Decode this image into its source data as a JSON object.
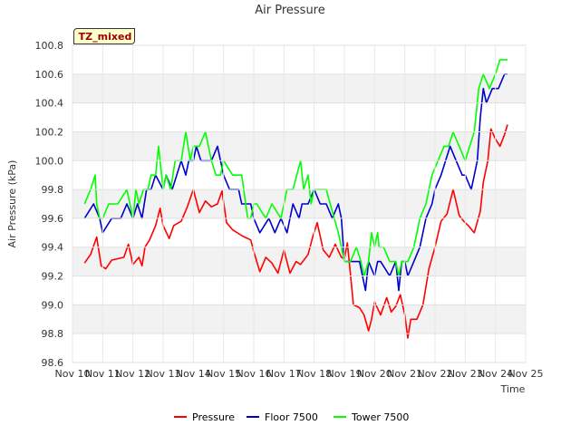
{
  "tag": "TZ_mixed",
  "colors": {
    "Pressure": "#ff0000",
    "Floor 7500": "#0000cc",
    "Tower 7500": "#00ff00"
  },
  "chart_data": {
    "type": "line",
    "title": "Air Pressure",
    "xlabel": "Time",
    "ylabel": "Air Pressure (kPa)",
    "xlim": [
      10,
      25
    ],
    "ylim": [
      98.6,
      100.8
    ],
    "x_ticks": [
      10,
      11,
      12,
      13,
      14,
      15,
      16,
      17,
      18,
      19,
      20,
      21,
      22,
      23,
      24,
      25
    ],
    "x_tick_labels": [
      "Nov 10",
      "Nov 11",
      "Nov 12",
      "Nov 13",
      "Nov 14",
      "Nov 15",
      "Nov 16",
      "Nov 17",
      "Nov 18",
      "Nov 19",
      "Nov 20",
      "Nov 21",
      "Nov 22",
      "Nov 23",
      "Nov 24",
      "Nov 25"
    ],
    "y_ticks": [
      98.6,
      98.8,
      99.0,
      99.2,
      99.4,
      99.6,
      99.8,
      100.0,
      100.2,
      100.4,
      100.6,
      100.8
    ],
    "y_tick_labels": [
      "98.6",
      "98.8",
      "99.0",
      "99.2",
      "99.4",
      "99.6",
      "99.8",
      "100.0",
      "100.2",
      "100.4",
      "100.6",
      "100.8"
    ],
    "legend": "bottom",
    "series": [
      {
        "name": "Pressure",
        "x": [
          10.4,
          10.6,
          10.8,
          10.95,
          11.1,
          11.3,
          11.5,
          11.7,
          11.85,
          12.0,
          12.2,
          12.3,
          12.4,
          12.55,
          12.75,
          12.9,
          13.0,
          13.2,
          13.35,
          13.6,
          13.8,
          14.0,
          14.2,
          14.4,
          14.6,
          14.8,
          14.95,
          15.1,
          15.3,
          15.6,
          15.9,
          16.0,
          16.2,
          16.4,
          16.6,
          16.8,
          17.0,
          17.2,
          17.4,
          17.55,
          17.8,
          17.95,
          18.1,
          18.3,
          18.5,
          18.7,
          18.9,
          19.0,
          19.1,
          19.3,
          19.5,
          19.65,
          19.8,
          19.9,
          20.0,
          20.2,
          20.4,
          20.55,
          20.7,
          20.85,
          21.0,
          21.1,
          21.2,
          21.4,
          21.6,
          21.8,
          22.0,
          22.2,
          22.4,
          22.6,
          22.8,
          22.95,
          23.1,
          23.3,
          23.5,
          23.6,
          23.75,
          23.85,
          24.0,
          24.15,
          24.3,
          24.4
        ],
        "values": [
          99.29,
          99.35,
          99.47,
          99.27,
          99.25,
          99.31,
          99.32,
          99.33,
          99.42,
          99.28,
          99.33,
          99.27,
          99.4,
          99.45,
          99.55,
          99.67,
          99.55,
          99.46,
          99.55,
          99.58,
          99.68,
          99.8,
          99.64,
          99.72,
          99.68,
          99.7,
          99.79,
          99.57,
          99.52,
          99.48,
          99.45,
          99.37,
          99.23,
          99.33,
          99.29,
          99.22,
          99.38,
          99.22,
          99.3,
          99.28,
          99.35,
          99.47,
          99.57,
          99.38,
          99.33,
          99.42,
          99.33,
          99.32,
          99.43,
          99.0,
          98.98,
          98.93,
          98.82,
          98.9,
          99.02,
          98.93,
          99.05,
          98.95,
          98.99,
          99.07,
          98.93,
          98.77,
          98.9,
          98.9,
          99.0,
          99.25,
          99.4,
          99.58,
          99.63,
          99.8,
          99.62,
          99.58,
          99.55,
          99.5,
          99.65,
          99.85,
          100.0,
          100.22,
          100.15,
          100.1,
          100.18,
          100.25
        ]
      },
      {
        "name": "Floor 7500",
        "x": [
          10.4,
          10.7,
          10.9,
          11.0,
          11.3,
          11.6,
          11.8,
          12.0,
          12.15,
          12.3,
          12.45,
          12.6,
          12.75,
          13.0,
          13.1,
          13.3,
          13.45,
          13.6,
          13.75,
          13.85,
          14.0,
          14.1,
          14.25,
          14.6,
          14.8,
          14.9,
          15.0,
          15.2,
          15.5,
          15.6,
          15.9,
          16.0,
          16.2,
          16.5,
          16.7,
          16.9,
          17.1,
          17.3,
          17.5,
          17.6,
          17.8,
          18.0,
          18.2,
          18.4,
          18.6,
          18.8,
          18.9,
          19.0,
          19.2,
          19.5,
          19.6,
          19.7,
          19.8,
          20.0,
          20.1,
          20.2,
          20.5,
          20.7,
          20.8,
          20.9,
          21.0,
          21.1,
          21.3,
          21.5,
          21.7,
          21.9,
          22.0,
          22.2,
          22.35,
          22.5,
          22.7,
          22.9,
          23.0,
          23.2,
          23.4,
          23.5,
          23.6,
          23.7,
          23.9,
          24.1,
          24.3,
          24.4
        ],
        "values": [
          99.6,
          99.7,
          99.6,
          99.5,
          99.6,
          99.6,
          99.7,
          99.6,
          99.7,
          99.6,
          99.8,
          99.8,
          99.9,
          99.8,
          99.9,
          99.8,
          99.9,
          100.0,
          99.9,
          100.0,
          100.0,
          100.1,
          100.0,
          100.0,
          100.1,
          100.0,
          99.9,
          99.8,
          99.8,
          99.7,
          99.7,
          99.6,
          99.5,
          99.6,
          99.5,
          99.6,
          99.5,
          99.7,
          99.6,
          99.7,
          99.7,
          99.8,
          99.7,
          99.7,
          99.6,
          99.7,
          99.6,
          99.3,
          99.3,
          99.3,
          99.2,
          99.1,
          99.3,
          99.2,
          99.3,
          99.3,
          99.2,
          99.3,
          99.1,
          99.3,
          99.3,
          99.2,
          99.3,
          99.4,
          99.6,
          99.7,
          99.8,
          99.9,
          100.0,
          100.1,
          100.0,
          99.9,
          99.9,
          99.8,
          100.0,
          100.3,
          100.5,
          100.4,
          100.5,
          100.5,
          100.6,
          100.6
        ]
      },
      {
        "name": "Tower 7500",
        "x": [
          10.4,
          10.6,
          10.75,
          10.8,
          10.9,
          11.0,
          11.2,
          11.5,
          11.8,
          12.0,
          12.1,
          12.2,
          12.35,
          12.5,
          12.6,
          12.75,
          12.85,
          13.0,
          13.1,
          13.25,
          13.4,
          13.6,
          13.75,
          13.9,
          14.0,
          14.2,
          14.4,
          14.6,
          14.75,
          14.9,
          15.0,
          15.3,
          15.6,
          15.8,
          15.9,
          16.0,
          16.1,
          16.4,
          16.6,
          16.9,
          17.0,
          17.1,
          17.3,
          17.55,
          17.65,
          17.8,
          17.9,
          18.0,
          18.2,
          18.4,
          18.8,
          18.9,
          19.0,
          19.2,
          19.4,
          19.55,
          19.65,
          19.8,
          19.9,
          20.0,
          20.1,
          20.15,
          20.3,
          20.5,
          20.7,
          20.8,
          20.9,
          21.0,
          21.1,
          21.3,
          21.5,
          21.7,
          21.9,
          22.1,
          22.3,
          22.45,
          22.6,
          22.8,
          23.0,
          23.15,
          23.3,
          23.45,
          23.6,
          23.8,
          24.0,
          24.15,
          24.3,
          24.4
        ],
        "values": [
          99.7,
          99.8,
          99.9,
          99.7,
          99.6,
          99.6,
          99.7,
          99.7,
          99.8,
          99.6,
          99.8,
          99.7,
          99.8,
          99.8,
          99.9,
          99.9,
          100.1,
          99.8,
          99.9,
          99.8,
          100.0,
          100.0,
          100.2,
          100.0,
          100.1,
          100.1,
          100.2,
          100.0,
          99.9,
          99.9,
          100.0,
          99.9,
          99.9,
          99.6,
          99.6,
          99.7,
          99.7,
          99.6,
          99.7,
          99.6,
          99.7,
          99.8,
          99.8,
          100.0,
          99.8,
          99.9,
          99.7,
          99.8,
          99.8,
          99.8,
          99.5,
          99.4,
          99.3,
          99.3,
          99.4,
          99.3,
          99.2,
          99.3,
          99.5,
          99.4,
          99.5,
          99.4,
          99.4,
          99.3,
          99.3,
          99.2,
          99.3,
          99.3,
          99.3,
          99.4,
          99.6,
          99.7,
          99.9,
          100.0,
          100.1,
          100.1,
          100.2,
          100.1,
          100.0,
          100.1,
          100.2,
          100.5,
          100.6,
          100.5,
          100.6,
          100.7,
          100.7,
          100.7
        ]
      }
    ]
  }
}
